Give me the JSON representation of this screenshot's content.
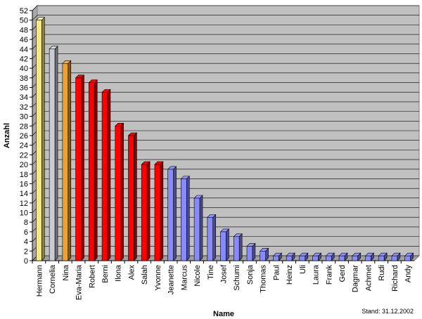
{
  "chart_data": {
    "type": "bar",
    "title": "",
    "xlabel": "Name",
    "ylabel": "Anzahl",
    "ylim": [
      0,
      52
    ],
    "ytick_step": 2,
    "grid": true,
    "three_d": true,
    "categories": [
      "Hermann",
      "Cornelia",
      "Nina",
      "Eva-Maria",
      "Robert",
      "Berni",
      "Ilona",
      "Alex",
      "Salah",
      "Yvonne",
      "Jeanette",
      "Marcus",
      "Nicole",
      "Tine",
      "Josef",
      "Schumi",
      "Sonja",
      "Thomas",
      "Paul",
      "Heinz",
      "Uli",
      "Laura",
      "Frank",
      "Gerd",
      "Dagmar",
      "Achmet",
      "Rudi",
      "Richard",
      "Andy"
    ],
    "values": [
      50,
      44,
      41,
      38,
      37,
      35,
      28,
      26,
      20,
      20,
      19,
      17,
      13,
      9,
      6,
      5,
      3,
      2,
      1,
      1,
      1,
      1,
      1,
      1,
      1,
      1,
      1,
      1,
      1
    ],
    "bar_colors": [
      "#f5e68a",
      "#c9ccd6",
      "#f0a030",
      "#ff0000",
      "#ff0000",
      "#ff0000",
      "#ff0000",
      "#ff0000",
      "#ff0000",
      "#ff0000",
      "#8a8aff",
      "#8a8aff",
      "#8a8aff",
      "#8a8aff",
      "#8a8aff",
      "#8a8aff",
      "#8a8aff",
      "#8a8aff",
      "#8a8aff",
      "#8a8aff",
      "#8a8aff",
      "#8a8aff",
      "#8a8aff",
      "#8a8aff",
      "#8a8aff",
      "#8a8aff",
      "#8a8aff",
      "#8a8aff",
      "#8a8aff"
    ],
    "plot_background": "#c0c0c0",
    "footnote": "Stand: 31.12.2002"
  }
}
